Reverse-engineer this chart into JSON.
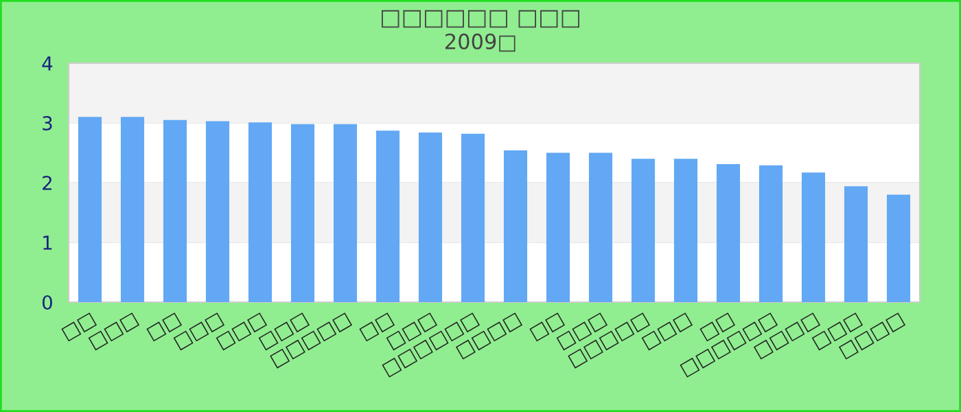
{
  "chart_data": {
    "type": "bar",
    "title": "□□□□□□ □□□",
    "subtitle": "2009□",
    "categories": [
      "□□",
      "□□□",
      "□□",
      "□□□",
      "□□□",
      "□□□",
      "□□□□□",
      "□□",
      "□□□",
      "□□□□□□",
      "□□□□",
      "□□",
      "□□□",
      "□□□□□",
      "□□□",
      "□□",
      "□□□□□□",
      "□□□□",
      "□□□",
      "□□□□"
    ],
    "values": [
      3.1,
      3.1,
      3.05,
      3.03,
      3.01,
      2.98,
      2.98,
      2.87,
      2.84,
      2.82,
      2.54,
      2.5,
      2.5,
      2.4,
      2.4,
      2.31,
      2.29,
      2.17,
      1.94,
      1.8
    ],
    "color": "#62a8f4",
    "ylim": [
      0,
      4
    ],
    "yticks": [
      0,
      1,
      2,
      3,
      4
    ],
    "grid": "y"
  }
}
